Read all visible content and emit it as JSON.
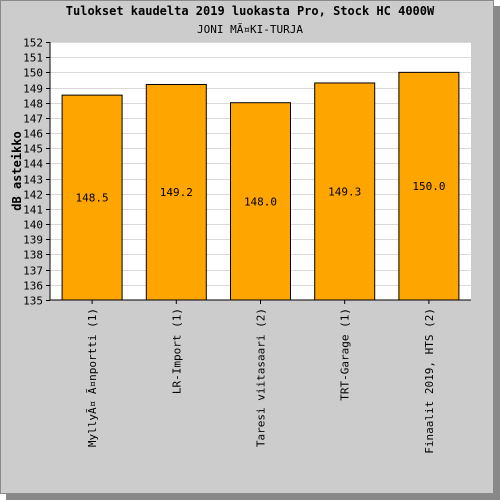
{
  "chart_data": {
    "type": "bar",
    "title": "Tulokset kaudelta 2019 luokasta Pro, Stock HC 4000W",
    "subtitle": "JONI MÃ¤KI-TURJA",
    "xlabel": "",
    "ylabel": "dB asteikko",
    "ylim": [
      135,
      152
    ],
    "yticks": [
      135,
      136,
      137,
      138,
      139,
      140,
      141,
      142,
      143,
      144,
      145,
      146,
      147,
      148,
      149,
      150,
      151,
      152
    ],
    "categories": [
      "MyllyÃ¤ Ã¤nportti (1)",
      "LR-Import (1)",
      "Taresi viitasaari (2)",
      "TRT-Garage (1)",
      "Finaalit 2019, HTS (2)"
    ],
    "values": [
      148.5,
      149.2,
      148.0,
      149.3,
      150.0
    ],
    "value_labels": [
      "148.5",
      "149.2",
      "148.0",
      "149.3",
      "150.0"
    ],
    "grid": true,
    "colors": {
      "bar": "#ffa500",
      "bar_stroke": "#000000",
      "plot_background": "#ffffff",
      "frame_background": "#cccccc",
      "grid": "#d9d9d9"
    }
  }
}
